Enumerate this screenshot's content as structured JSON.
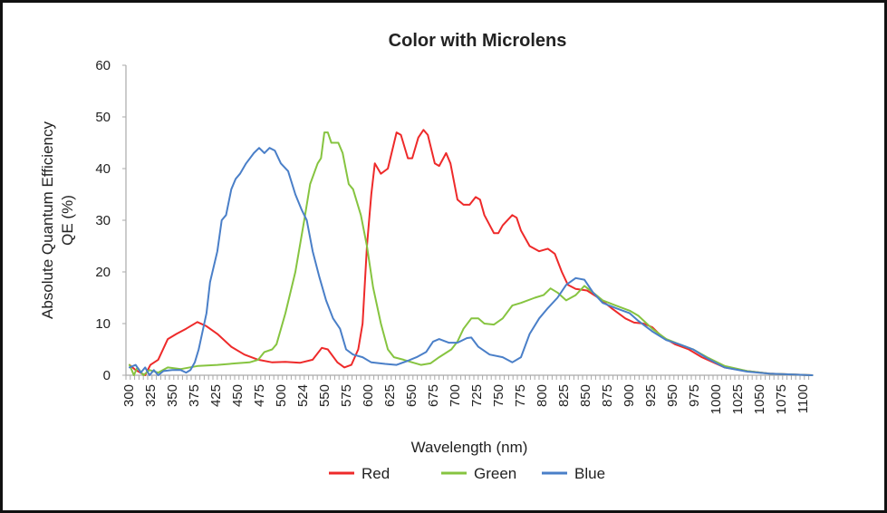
{
  "chart_data": {
    "type": "line",
    "title": "Color with Microlens",
    "xlabel": "Wavelength (nm)",
    "ylabel": [
      "Absolute Quantum Efficiency",
      "QE (%)"
    ],
    "ylim": [
      0,
      60
    ],
    "yticks": [
      "0",
      "10",
      "20",
      "30",
      "40",
      "50",
      "60"
    ],
    "xticks": [
      "300",
      "325",
      "350",
      "375",
      "425",
      "450",
      "475",
      "500",
      "524",
      "550",
      "575",
      "600",
      "625",
      "650",
      "675",
      "700",
      "725",
      "750",
      "775",
      "800",
      "825",
      "850",
      "875",
      "900",
      "925",
      "950",
      "975",
      "1000",
      "1025",
      "1050",
      "1075",
      "1100"
    ],
    "grid": false,
    "legend_position": "bottom",
    "series": [
      {
        "name": "Red",
        "color": "#ee2a2a",
        "points": [
          [
            301,
            2
          ],
          [
            308,
            1
          ],
          [
            319,
            0
          ],
          [
            325,
            2
          ],
          [
            334,
            3
          ],
          [
            345,
            7
          ],
          [
            355,
            8
          ],
          [
            366,
            9
          ],
          [
            383,
            10.3
          ],
          [
            404,
            9.5
          ],
          [
            427,
            8
          ],
          [
            443,
            5.5
          ],
          [
            458,
            4
          ],
          [
            474,
            3
          ],
          [
            490,
            2.5
          ],
          [
            505,
            2.6
          ],
          [
            521,
            2.4
          ],
          [
            536,
            3
          ],
          [
            547,
            5.3
          ],
          [
            554,
            5
          ],
          [
            565,
            2.5
          ],
          [
            573,
            1.5
          ],
          [
            581,
            2
          ],
          [
            589,
            5
          ],
          [
            594,
            10
          ],
          [
            599,
            25
          ],
          [
            604,
            35
          ],
          [
            608,
            41
          ],
          [
            615,
            39
          ],
          [
            623,
            40
          ],
          [
            633,
            47
          ],
          [
            638,
            46.5
          ],
          [
            646,
            42
          ],
          [
            651,
            42
          ],
          [
            658,
            46
          ],
          [
            664,
            47.5
          ],
          [
            669,
            46.5
          ],
          [
            677,
            41
          ],
          [
            682,
            40.5
          ],
          [
            690,
            43
          ],
          [
            695,
            41
          ],
          [
            703,
            34
          ],
          [
            710,
            33
          ],
          [
            717,
            33
          ],
          [
            724,
            34.5
          ],
          [
            729,
            34
          ],
          [
            734,
            31
          ],
          [
            745,
            27.5
          ],
          [
            750,
            27.5
          ],
          [
            755,
            29
          ],
          [
            766,
            31
          ],
          [
            771,
            30.5
          ],
          [
            776,
            28
          ],
          [
            786,
            25
          ],
          [
            797,
            24
          ],
          [
            807,
            24.5
          ],
          [
            815,
            23.5
          ],
          [
            823,
            20
          ],
          [
            830,
            17.5
          ],
          [
            839,
            16.7
          ],
          [
            852,
            16.4
          ],
          [
            865,
            15
          ],
          [
            880,
            13
          ],
          [
            896,
            11
          ],
          [
            906,
            10.2
          ],
          [
            917,
            10
          ],
          [
            927,
            9.3
          ],
          [
            938,
            7.5
          ],
          [
            953,
            6
          ],
          [
            969,
            5
          ],
          [
            984,
            3.5
          ],
          [
            1010,
            1.5
          ],
          [
            1036,
            0.8
          ],
          [
            1062,
            0.3
          ],
          [
            1111,
            0
          ]
        ]
      },
      {
        "name": "Green",
        "color": "#86c440",
        "points": [
          [
            301,
            2
          ],
          [
            306,
            0
          ],
          [
            310,
            1.5
          ],
          [
            317,
            0
          ],
          [
            324,
            1
          ],
          [
            334,
            0.5
          ],
          [
            345,
            1.5
          ],
          [
            360,
            1.2
          ],
          [
            385,
            1.8
          ],
          [
            427,
            2
          ],
          [
            448,
            2.3
          ],
          [
            464,
            2.5
          ],
          [
            474,
            3
          ],
          [
            481,
            4.5
          ],
          [
            490,
            5
          ],
          [
            495,
            6
          ],
          [
            505,
            12
          ],
          [
            516,
            20
          ],
          [
            526,
            30
          ],
          [
            533,
            37
          ],
          [
            542,
            41
          ],
          [
            546,
            42
          ],
          [
            550,
            47
          ],
          [
            554,
            47
          ],
          [
            558,
            45
          ],
          [
            566,
            45
          ],
          [
            571,
            43
          ],
          [
            578,
            37
          ],
          [
            583,
            36
          ],
          [
            592,
            31
          ],
          [
            599,
            25
          ],
          [
            606,
            17
          ],
          [
            615,
            10
          ],
          [
            623,
            5
          ],
          [
            630,
            3.5
          ],
          [
            641,
            3
          ],
          [
            651,
            2.5
          ],
          [
            661,
            2
          ],
          [
            672,
            2.3
          ],
          [
            682,
            3.5
          ],
          [
            696,
            5
          ],
          [
            703,
            6.5
          ],
          [
            710,
            9
          ],
          [
            719,
            11
          ],
          [
            727,
            11
          ],
          [
            734,
            10
          ],
          [
            745,
            9.8
          ],
          [
            755,
            11
          ],
          [
            766,
            13.5
          ],
          [
            776,
            14
          ],
          [
            792,
            15
          ],
          [
            802,
            15.5
          ],
          [
            810,
            16.8
          ],
          [
            818,
            16
          ],
          [
            828,
            14.5
          ],
          [
            839,
            15.5
          ],
          [
            849,
            17.3
          ],
          [
            859,
            16
          ],
          [
            870,
            14.5
          ],
          [
            885,
            13.5
          ],
          [
            901,
            12.5
          ],
          [
            911,
            11.5
          ],
          [
            927,
            9
          ],
          [
            943,
            7
          ],
          [
            958,
            6
          ],
          [
            974,
            5
          ],
          [
            990,
            3.5
          ],
          [
            1010,
            1.8
          ],
          [
            1036,
            0.8
          ],
          [
            1062,
            0.3
          ],
          [
            1111,
            0
          ]
        ]
      },
      {
        "name": "Blue",
        "color": "#4a7fc8",
        "points": [
          [
            301,
            1.5
          ],
          [
            308,
            2
          ],
          [
            314,
            0.5
          ],
          [
            319,
            1.5
          ],
          [
            324,
            0
          ],
          [
            329,
            1
          ],
          [
            334,
            0
          ],
          [
            340,
            0.8
          ],
          [
            350,
            1
          ],
          [
            360,
            1
          ],
          [
            366,
            0.5
          ],
          [
            371,
            1
          ],
          [
            377,
            2.5
          ],
          [
            386,
            5
          ],
          [
            404,
            12
          ],
          [
            412,
            18
          ],
          [
            427,
            24
          ],
          [
            432,
            30
          ],
          [
            437,
            31
          ],
          [
            443,
            36
          ],
          [
            448,
            38
          ],
          [
            453,
            39
          ],
          [
            460,
            41
          ],
          [
            469,
            43
          ],
          [
            475,
            44
          ],
          [
            481,
            43
          ],
          [
            487,
            44
          ],
          [
            493,
            43.5
          ],
          [
            500,
            41
          ],
          [
            508,
            39.5
          ],
          [
            516,
            35
          ],
          [
            523,
            32
          ],
          [
            529,
            30
          ],
          [
            536,
            24
          ],
          [
            544,
            19
          ],
          [
            552,
            14.5
          ],
          [
            560,
            11
          ],
          [
            568,
            9
          ],
          [
            575,
            5
          ],
          [
            583,
            4
          ],
          [
            594,
            3.5
          ],
          [
            604,
            2.5
          ],
          [
            620,
            2.2
          ],
          [
            633,
            2
          ],
          [
            646,
            2.8
          ],
          [
            656,
            3.5
          ],
          [
            667,
            4.5
          ],
          [
            675,
            6.5
          ],
          [
            682,
            7
          ],
          [
            693,
            6.3
          ],
          [
            703,
            6.3
          ],
          [
            714,
            7.2
          ],
          [
            719,
            7.3
          ],
          [
            727,
            5.5
          ],
          [
            740,
            4
          ],
          [
            755,
            3.5
          ],
          [
            766,
            2.5
          ],
          [
            776,
            3.5
          ],
          [
            786,
            8
          ],
          [
            797,
            11
          ],
          [
            807,
            13
          ],
          [
            818,
            15
          ],
          [
            828,
            17.5
          ],
          [
            839,
            18.8
          ],
          [
            849,
            18.5
          ],
          [
            859,
            16
          ],
          [
            870,
            14
          ],
          [
            885,
            13
          ],
          [
            901,
            12
          ],
          [
            911,
            10.5
          ],
          [
            927,
            8.5
          ],
          [
            943,
            6.8
          ],
          [
            958,
            6
          ],
          [
            974,
            5
          ],
          [
            990,
            3.3
          ],
          [
            1010,
            1.5
          ],
          [
            1036,
            0.7
          ],
          [
            1062,
            0.3
          ],
          [
            1111,
            0
          ]
        ]
      }
    ]
  }
}
